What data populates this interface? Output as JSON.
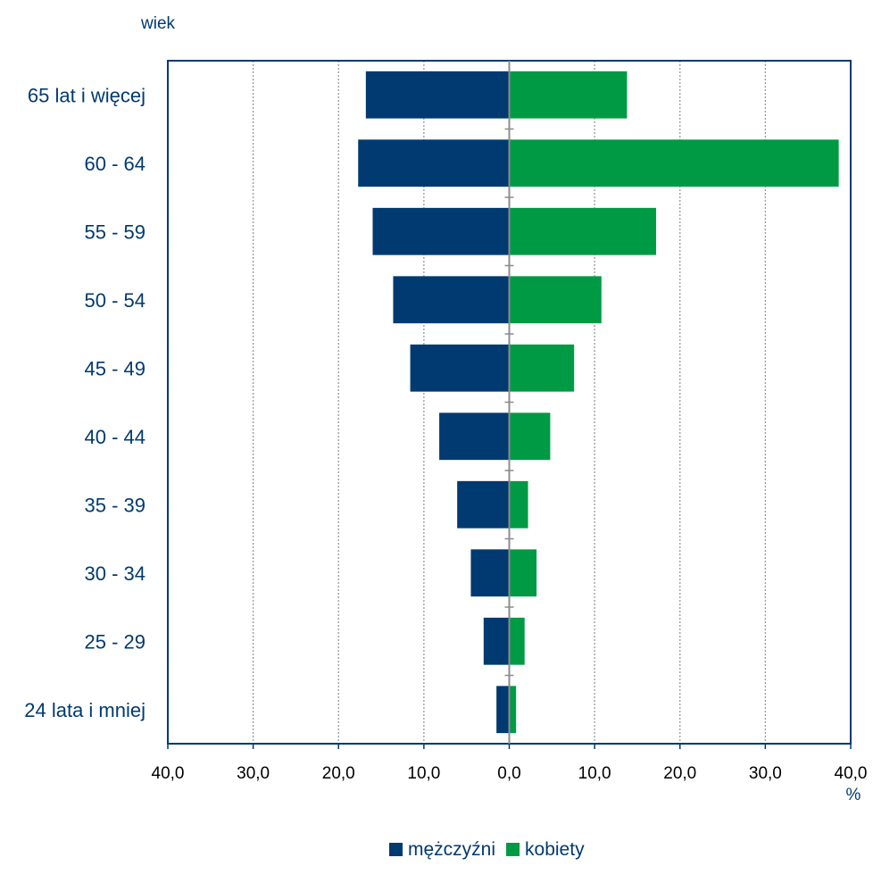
{
  "chart_data": {
    "type": "bar",
    "orientation": "horizontal-diverging",
    "ylabel": "wiek",
    "xlabel": "%",
    "categories": [
      "65 lat i więcej",
      "60 - 64",
      "55 - 59",
      "50 - 54",
      "45 - 49",
      "40 - 44",
      "35 - 39",
      "30 - 34",
      "25 - 29",
      "24 lata i mniej"
    ],
    "series": [
      {
        "name": "mężczyźni",
        "color": "#003a70",
        "side": "left",
        "values": [
          16.8,
          17.7,
          16.0,
          13.6,
          11.6,
          8.2,
          6.1,
          4.5,
          3.0,
          1.5
        ]
      },
      {
        "name": "kobiety",
        "color": "#009a44",
        "side": "right",
        "values": [
          13.8,
          38.6,
          17.2,
          10.8,
          7.6,
          4.8,
          2.2,
          3.2,
          1.8,
          0.8
        ]
      }
    ],
    "xlim": [
      -40,
      40
    ],
    "x_ticks": [
      "40,0",
      "30,0",
      "20,0",
      "10,0",
      "0,0",
      "10,0",
      "20,0",
      "30,0",
      "40,0"
    ],
    "grid": "vertical-dotted",
    "legend": "bottom-center"
  }
}
